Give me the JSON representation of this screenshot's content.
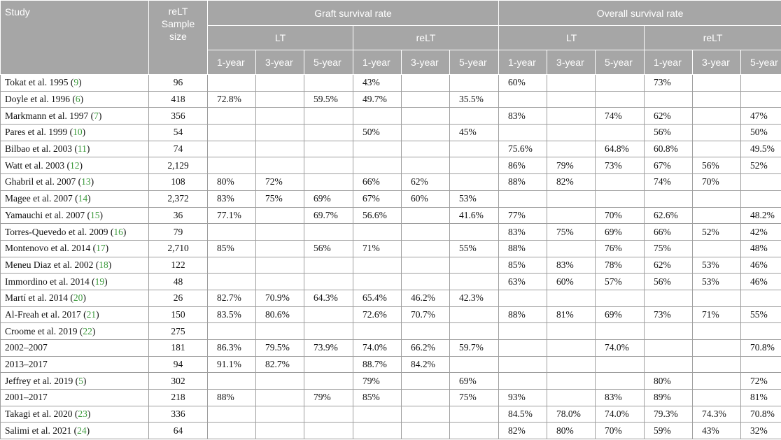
{
  "header": {
    "study": "Study",
    "sample_size": "reLT Sample size",
    "graft": "Graft survival rate",
    "overall": "Overall survival rate",
    "lt": "LT",
    "relt": "reLT",
    "year_labels": [
      "1-year",
      "3-year",
      "5-year"
    ]
  },
  "rows": [
    {
      "study": "Tokat et al. 1995 (",
      "ref": "9",
      "size": "96",
      "vals": [
        "",
        "",
        "",
        "43%",
        "",
        "",
        "60%",
        "",
        "",
        "73%",
        "",
        ""
      ]
    },
    {
      "study": "Doyle et al. 1996 (",
      "ref": "6",
      "size": "418",
      "vals": [
        "72.8%",
        "",
        "59.5%",
        "49.7%",
        "",
        "35.5%",
        "",
        "",
        "",
        "",
        "",
        ""
      ]
    },
    {
      "study": "Markmann et al. 1997 (",
      "ref": "7",
      "size": "356",
      "vals": [
        "",
        "",
        "",
        "",
        "",
        "",
        "83%",
        "",
        "74%",
        "62%",
        "",
        "47%"
      ]
    },
    {
      "study": "Pares et al. 1999 (",
      "ref": "10",
      "size": "54",
      "vals": [
        "",
        "",
        "",
        "50%",
        "",
        "45%",
        "",
        "",
        "",
        "56%",
        "",
        "50%"
      ]
    },
    {
      "study": "Bilbao et al. 2003 (",
      "ref": "11",
      "size": "74",
      "vals": [
        "",
        "",
        "",
        "",
        "",
        "",
        "75.6%",
        "",
        "64.8%",
        "60.8%",
        "",
        "49.5%"
      ]
    },
    {
      "study": "Watt et al. 2003 (",
      "ref": "12",
      "size": "2,129",
      "vals": [
        "",
        "",
        "",
        "",
        "",
        "",
        "86%",
        "79%",
        "73%",
        "67%",
        "56%",
        "52%"
      ]
    },
    {
      "study": "Ghabril et al. 2007 (",
      "ref": "13",
      "size": "108",
      "vals": [
        "80%",
        "72%",
        "",
        "66%",
        "62%",
        "",
        "88%",
        "82%",
        "",
        "74%",
        "70%",
        ""
      ]
    },
    {
      "study": "Magee et al. 2007 (",
      "ref": "14",
      "size": "2,372",
      "vals": [
        "83%",
        "75%",
        "69%",
        "67%",
        "60%",
        "53%",
        "",
        "",
        "",
        "",
        "",
        ""
      ]
    },
    {
      "study": "Yamauchi et al. 2007 (",
      "ref": "15",
      "size": "36",
      "vals": [
        "77.1%",
        "",
        "69.7%",
        "56.6%",
        "",
        "41.6%",
        "77%",
        "",
        "70%",
        "62.6%",
        "",
        "48.2%"
      ]
    },
    {
      "study": "Torres-Quevedo et al. 2009 (",
      "ref": "16",
      "size": "79",
      "vals": [
        "",
        "",
        "",
        "",
        "",
        "",
        "83%",
        "75%",
        "69%",
        "66%",
        "52%",
        "42%"
      ]
    },
    {
      "study": "Montenovo et al. 2014 (",
      "ref": "17",
      "size": "2,710",
      "vals": [
        "85%",
        "",
        "56%",
        "71%",
        "",
        "55%",
        "88%",
        "",
        "76%",
        "75%",
        "",
        "48%"
      ]
    },
    {
      "study": "Meneu Diaz et al. 2002 (",
      "ref": "18",
      "size": "122",
      "vals": [
        "",
        "",
        "",
        "",
        "",
        "",
        "85%",
        "83%",
        "78%",
        "62%",
        "53%",
        "46%"
      ]
    },
    {
      "study": "Immordino et al. 2014 (",
      "ref": "19",
      "size": "48",
      "vals": [
        "",
        "",
        "",
        "",
        "",
        "",
        "63%",
        "60%",
        "57%",
        "56%",
        "53%",
        "46%"
      ]
    },
    {
      "study": "Martí et al. 2014 (",
      "ref": "20",
      "size": "26",
      "vals": [
        "82.7%",
        "70.9%",
        "64.3%",
        "65.4%",
        "46.2%",
        "42.3%",
        "",
        "",
        "",
        "",
        "",
        ""
      ]
    },
    {
      "study": "Al-Freah et al. 2017 (",
      "ref": "21",
      "size": "150",
      "vals": [
        "83.5%",
        "80.6%",
        "",
        "72.6%",
        "70.7%",
        "",
        "88%",
        "81%",
        "69%",
        "73%",
        "71%",
        "55%"
      ]
    },
    {
      "study": "Croome et al. 2019 (",
      "ref": "22",
      "size": "275",
      "vals": [
        "",
        "",
        "",
        "",
        "",
        "",
        "",
        "",
        "",
        "",
        "",
        ""
      ]
    },
    {
      "study": "2002–2007",
      "ref": "",
      "size": "181",
      "vals": [
        "86.3%",
        "79.5%",
        "73.9%",
        "74.0%",
        "66.2%",
        "59.7%",
        "",
        "",
        "74.0%",
        "",
        "",
        "70.8%"
      ]
    },
    {
      "study": "2013–2017",
      "ref": "",
      "size": "94",
      "vals": [
        "91.1%",
        "82.7%",
        "",
        "88.7%",
        "84.2%",
        "",
        "",
        "",
        "",
        "",
        "",
        ""
      ]
    },
    {
      "study": "Jeffrey et al. 2019 (",
      "ref": "5",
      "size": "302",
      "vals": [
        "",
        "",
        "",
        "79%",
        "",
        "69%",
        "",
        "",
        "",
        "80%",
        "",
        "72%"
      ]
    },
    {
      "study": "2001–2017",
      "ref": "",
      "size": "218",
      "vals": [
        "88%",
        "",
        "79%",
        "85%",
        "",
        "75%",
        "93%",
        "",
        "83%",
        "89%",
        "",
        "81%"
      ]
    },
    {
      "study": "Takagi et al. 2020 (",
      "ref": "23",
      "size": "336",
      "vals": [
        "",
        "",
        "",
        "",
        "",
        "",
        "84.5%",
        "78.0%",
        "74.0%",
        "79.3%",
        "74.3%",
        "70.8%"
      ]
    },
    {
      "study": "Salimi et al. 2021 (",
      "ref": "24",
      "size": "64",
      "vals": [
        "",
        "",
        "",
        "",
        "",
        "",
        "82%",
        "80%",
        "70%",
        "59%",
        "43%",
        "32%"
      ]
    }
  ]
}
